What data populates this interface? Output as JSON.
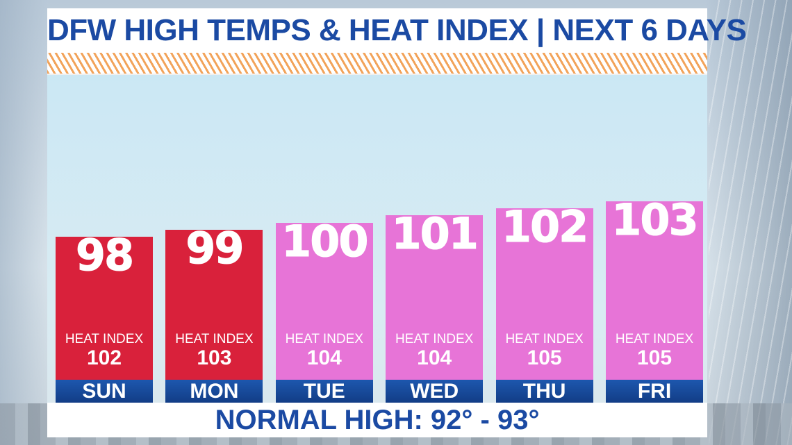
{
  "title": "DFW HIGH TEMPS & HEAT INDEX | NEXT 6 DAYS",
  "footer": "NORMAL HIGH: 92° - 93°",
  "colors": {
    "hot": "#d9213b",
    "extreme": "#e774d7",
    "day_bar": "#1a4f9f",
    "title": "#1b4aa3"
  },
  "chart_data": {
    "type": "bar",
    "categories": [
      "SUN",
      "MON",
      "TUE",
      "WED",
      "THU",
      "FRI"
    ],
    "series": [
      {
        "values": [
          98,
          99,
          100,
          101,
          102,
          103
        ]
      },
      {
        "name": "HEAT INDEX",
        "values": [
          102,
          103,
          104,
          104,
          105,
          105
        ]
      }
    ],
    "value_labels": [
      "98",
      "99",
      "100",
      "101",
      "102",
      "103"
    ],
    "heat_index_labels": [
      "102",
      "103",
      "104",
      "104",
      "105",
      "105"
    ],
    "heat_index_label": "HEAT INDEX",
    "bar_colors": [
      "#d9213b",
      "#d9213b",
      "#e774d7",
      "#e774d7",
      "#e774d7",
      "#e774d7"
    ],
    "title": "DFW HIGH TEMPS & HEAT INDEX | NEXT 6 DAYS",
    "xlabel": "",
    "ylabel": ""
  }
}
